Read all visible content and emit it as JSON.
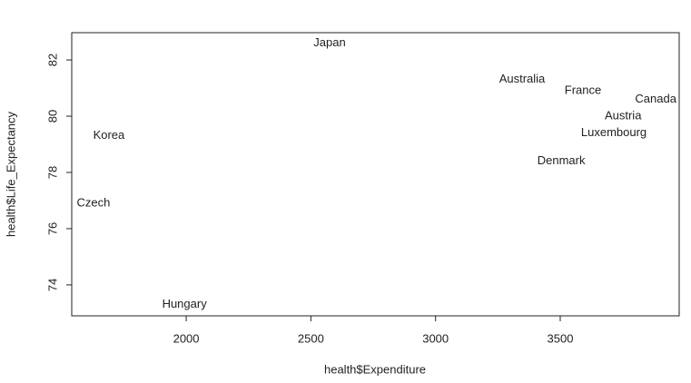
{
  "chart_data": {
    "type": "scatter",
    "x_label": "health$Expenditure",
    "y_label": "health$Life_Expectancy",
    "labels": [
      "Japan",
      "Australia",
      "France",
      "Canada",
      "Austria",
      "Luxembourg",
      "Denmark",
      "Korea",
      "Czech",
      "Hungary"
    ],
    "x": [
      2575,
      3347,
      3591,
      3883,
      3752,
      3715,
      3504,
      1690,
      1628,
      1993
    ],
    "values": [
      82.6,
      81.3,
      80.9,
      80.6,
      80.0,
      79.4,
      78.4,
      79.3,
      76.9,
      73.3
    ],
    "xlim": [
      1541,
      3977
    ],
    "ylim": [
      72.9,
      82.97
    ],
    "xticks": [
      2000,
      2500,
      3000,
      3500
    ],
    "yticks": [
      74,
      76,
      78,
      80,
      82
    ]
  }
}
